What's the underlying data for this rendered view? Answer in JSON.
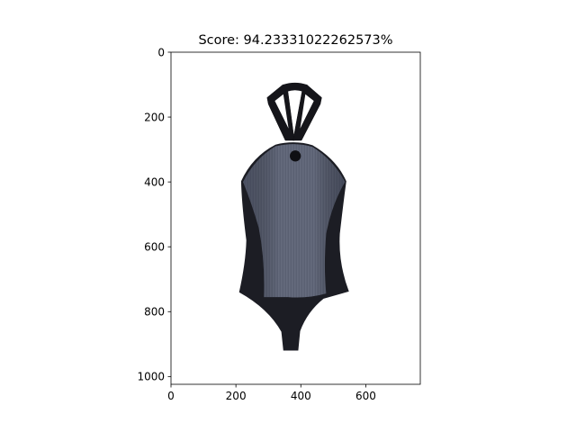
{
  "chart_data": {
    "type": "image",
    "title": "Score: 94.23331022262573%",
    "image_subject": "garment-photo",
    "xlim": [
      0,
      768
    ],
    "ylim": [
      1024,
      0
    ],
    "xticks": [
      0,
      200,
      400,
      600
    ],
    "xtick_labels": [
      "0",
      "200",
      "400",
      "600"
    ],
    "yticks": [
      0,
      200,
      400,
      600,
      800,
      1000
    ],
    "ytick_labels": [
      "0",
      "200",
      "400",
      "600",
      "800",
      "1000"
    ],
    "grid": false,
    "y_axis_inverted": true,
    "colors": {
      "background": "#ffffff",
      "outer_fabric": "#1c1d24",
      "strap": "#15151a",
      "panel": "#5a6072",
      "panel_highlight": "#6c7386",
      "axis": "#000000"
    }
  }
}
